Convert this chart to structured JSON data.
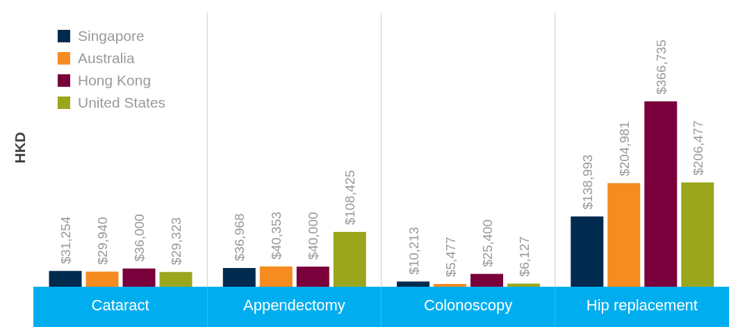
{
  "chart_data": {
    "type": "bar",
    "ylabel": "HKD",
    "categories": [
      "Cataract",
      "Appendectomy",
      "Colonoscopy",
      "Hip replacement"
    ],
    "series": [
      {
        "name": "Singapore",
        "color": "#002b4f",
        "values": [
          31254,
          36968,
          10213,
          138993
        ],
        "value_labels": [
          "$31,254",
          "$36,968",
          "$10,213",
          "$138,993"
        ]
      },
      {
        "name": "Australia",
        "color": "#f68b1f",
        "values": [
          29940,
          40353,
          5477,
          204981
        ],
        "value_labels": [
          "$29,940",
          "$40,353",
          "$5,477",
          "$204,981"
        ]
      },
      {
        "name": "Hong Kong",
        "color": "#7a003c",
        "values": [
          36000,
          40000,
          25400,
          366735
        ],
        "value_labels": [
          "$36,000",
          "$40,000",
          "$25,400",
          "$366,735"
        ]
      },
      {
        "name": "United States",
        "color": "#9ba61c",
        "values": [
          29323,
          108425,
          6127,
          206477
        ],
        "value_labels": [
          "$29,323",
          "$108,425",
          "$6,127",
          "$206,477"
        ]
      }
    ],
    "grid": "x",
    "legend": "top left"
  }
}
